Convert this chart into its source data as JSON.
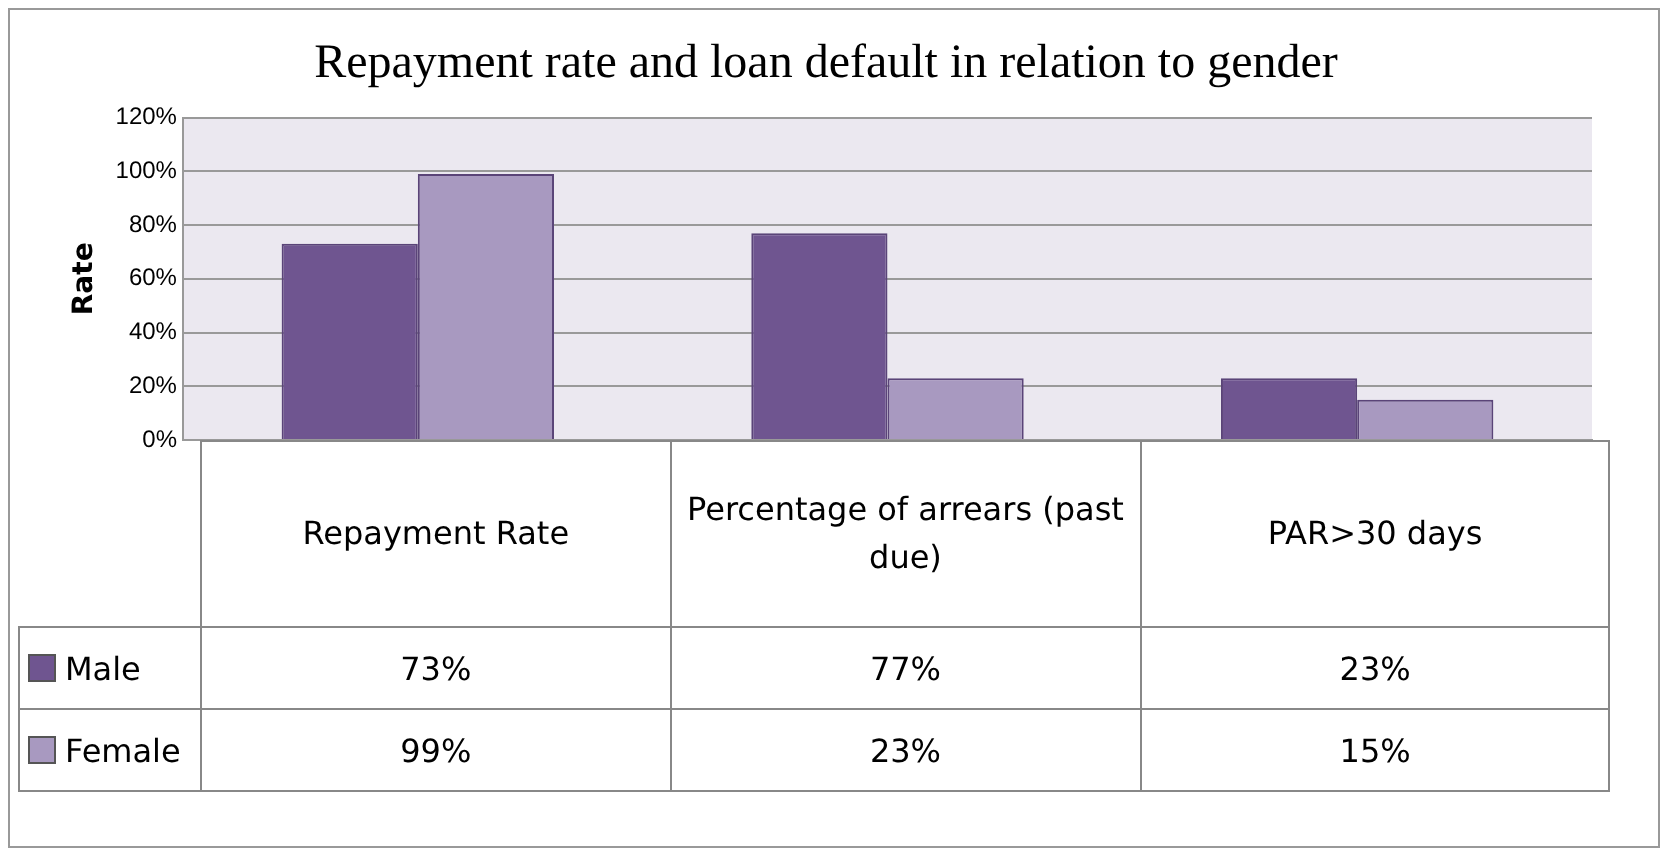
{
  "chart_data": {
    "type": "bar",
    "title": "Repayment rate and loan default in relation to gender",
    "ylabel": "Rate",
    "categories": [
      "Repayment Rate",
      "Percentage of arrears (past due)",
      "PAR>30 days"
    ],
    "series": [
      {
        "name": "Male",
        "color": "#6f5590",
        "values": [
          73,
          77,
          23
        ],
        "value_labels": [
          "73%",
          "77%",
          "23%"
        ]
      },
      {
        "name": "Female",
        "color": "#a899c0",
        "values": [
          99,
          23,
          15
        ],
        "value_labels": [
          "99%",
          "23%",
          "15%"
        ]
      }
    ],
    "ylim": [
      0,
      120
    ],
    "yticks": [
      {
        "value": 0,
        "label": "0%"
      },
      {
        "value": 20,
        "label": "20%"
      },
      {
        "value": 40,
        "label": "40%"
      },
      {
        "value": 60,
        "label": "60%"
      },
      {
        "value": 80,
        "label": "80%"
      },
      {
        "value": 100,
        "label": "100%"
      },
      {
        "value": 120,
        "label": "120%"
      }
    ],
    "grid": "y",
    "legend": "bottom"
  }
}
